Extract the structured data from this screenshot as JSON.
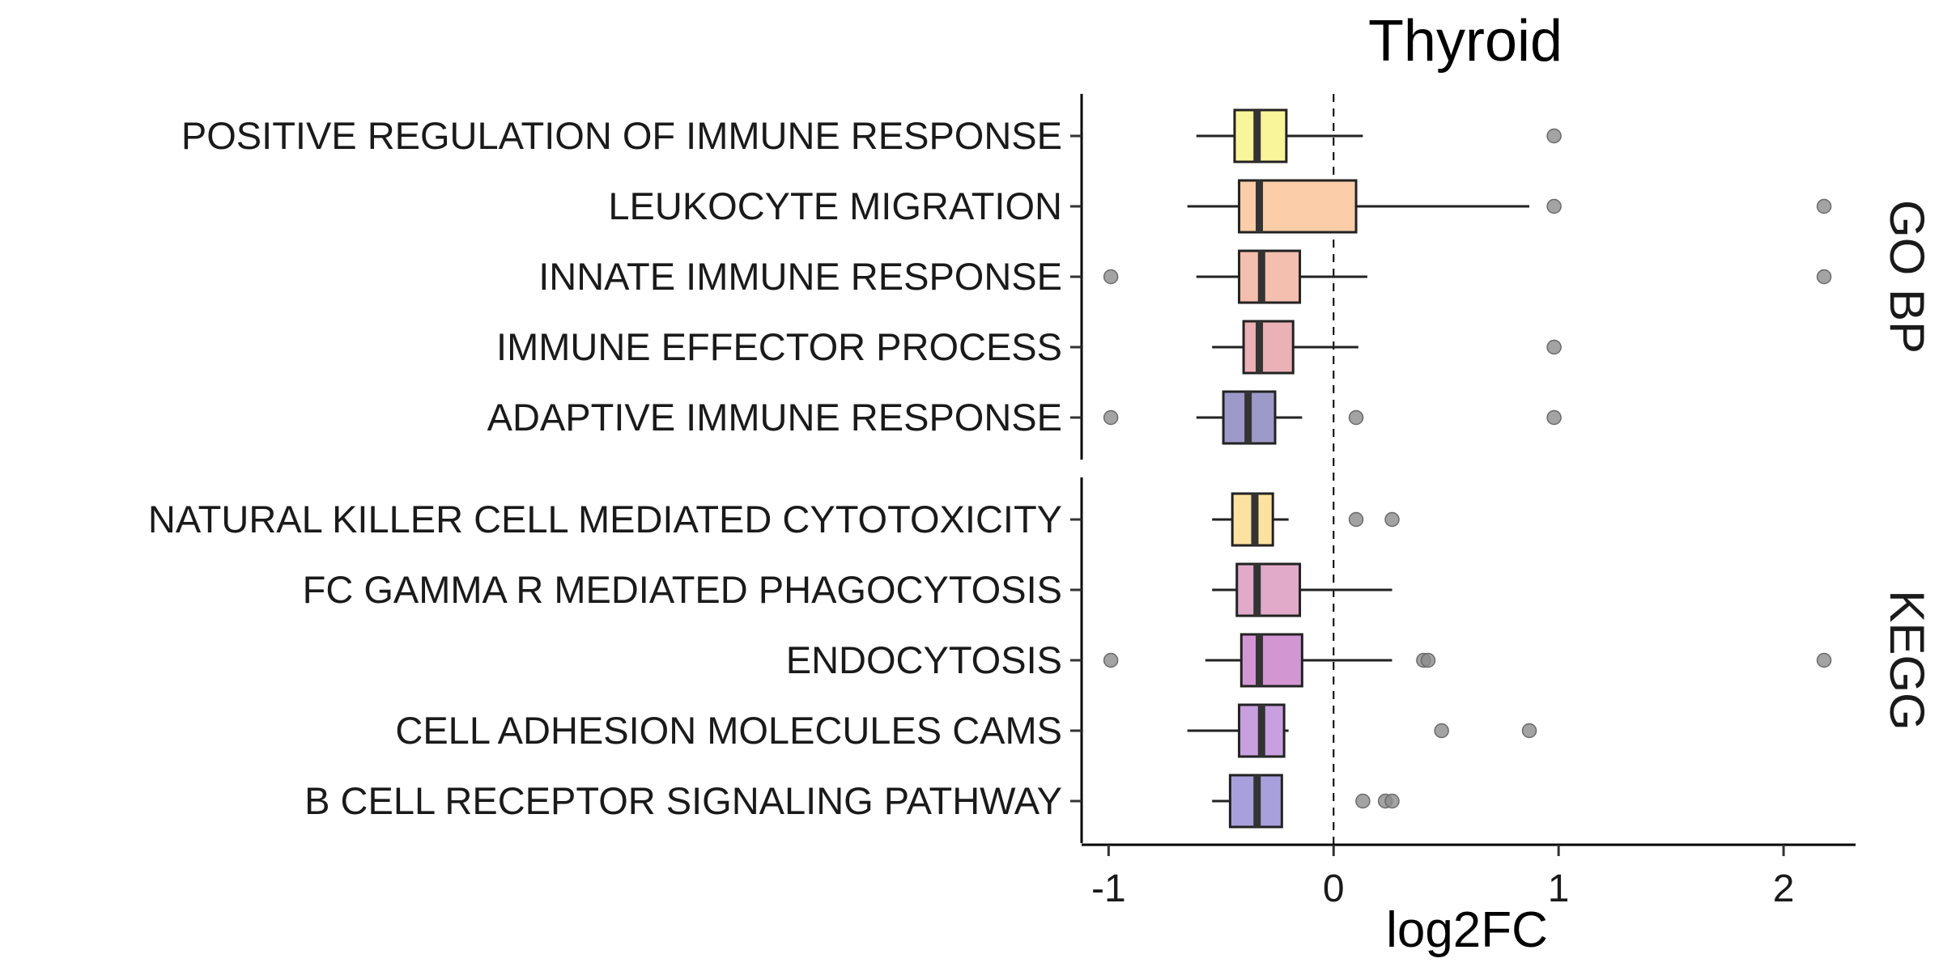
{
  "chart_data": {
    "type": "boxplot",
    "title": "Thyroid",
    "xlabel": "log2FC",
    "ylabel": "",
    "xlim": [
      -1.12,
      2.32
    ],
    "x_ticks": [
      -1,
      0,
      1,
      2
    ],
    "x_tick_labels": [
      "-1",
      "0",
      "1",
      "2"
    ],
    "reference_line": {
      "x": 0,
      "style": "dashed"
    },
    "grid": false,
    "legend": "none",
    "facets": [
      {
        "label": "GO BP",
        "categories": [
          {
            "name": "POSITIVE REGULATION OF IMMUNE RESPONSE",
            "color": "#f9f59a",
            "whisker_low": -0.61,
            "q1": -0.44,
            "median": -0.34,
            "q3": -0.21,
            "whisker_high": 0.13,
            "outliers": [
              0.98
            ]
          },
          {
            "name": "LEUKOCYTE MIGRATION",
            "color": "#fbcda8",
            "whisker_low": -0.65,
            "q1": -0.42,
            "median": -0.33,
            "q3": 0.1,
            "whisker_high": 0.87,
            "outliers": [
              0.98,
              2.18
            ]
          },
          {
            "name": "INNATE IMMUNE RESPONSE",
            "color": "#f4bfae",
            "whisker_low": -0.61,
            "q1": -0.42,
            "median": -0.32,
            "q3": -0.15,
            "whisker_high": 0.15,
            "outliers": [
              -0.99,
              2.18
            ]
          },
          {
            "name": "IMMUNE EFFECTOR PROCESS",
            "color": "#eab2b7",
            "whisker_low": -0.54,
            "q1": -0.4,
            "median": -0.33,
            "q3": -0.18,
            "whisker_high": 0.11,
            "outliers": [
              0.98
            ]
          },
          {
            "name": "ADAPTIVE IMMUNE RESPONSE",
            "color": "#9d9ac9",
            "whisker_low": -0.61,
            "q1": -0.49,
            "median": -0.38,
            "q3": -0.26,
            "whisker_high": -0.14,
            "outliers": [
              -0.99,
              0.1,
              0.98
            ]
          }
        ]
      },
      {
        "label": "KEGG",
        "categories": [
          {
            "name": "NATURAL KILLER CELL MEDIATED CYTOTOXICITY",
            "color": "#fbe2a0",
            "whisker_low": -0.54,
            "q1": -0.45,
            "median": -0.35,
            "q3": -0.27,
            "whisker_high": -0.2,
            "outliers": [
              0.1,
              0.26
            ]
          },
          {
            "name": "FC GAMMA R MEDIATED PHAGOCYTOSIS",
            "color": "#e1aac9",
            "whisker_low": -0.54,
            "q1": -0.43,
            "median": -0.34,
            "q3": -0.15,
            "whisker_high": 0.26,
            "outliers": []
          },
          {
            "name": "ENDOCYTOSIS",
            "color": "#d297d3",
            "whisker_low": -0.57,
            "q1": -0.41,
            "median": -0.33,
            "q3": -0.14,
            "whisker_high": 0.26,
            "outliers": [
              -0.99,
              0.4,
              0.42,
              2.18
            ]
          },
          {
            "name": "CELL ADHESION MOLECULES CAMS",
            "color": "#c8a0df",
            "whisker_low": -0.65,
            "q1": -0.42,
            "median": -0.32,
            "q3": -0.22,
            "whisker_high": -0.2,
            "outliers": [
              0.48,
              0.87
            ]
          },
          {
            "name": "B CELL RECEPTOR SIGNALING PATHWAY",
            "color": "#a8a0dc",
            "whisker_low": -0.54,
            "q1": -0.46,
            "median": -0.34,
            "q3": -0.23,
            "whisker_high": -0.23,
            "outliers": [
              0.13,
              0.23,
              0.26
            ]
          }
        ]
      }
    ]
  }
}
